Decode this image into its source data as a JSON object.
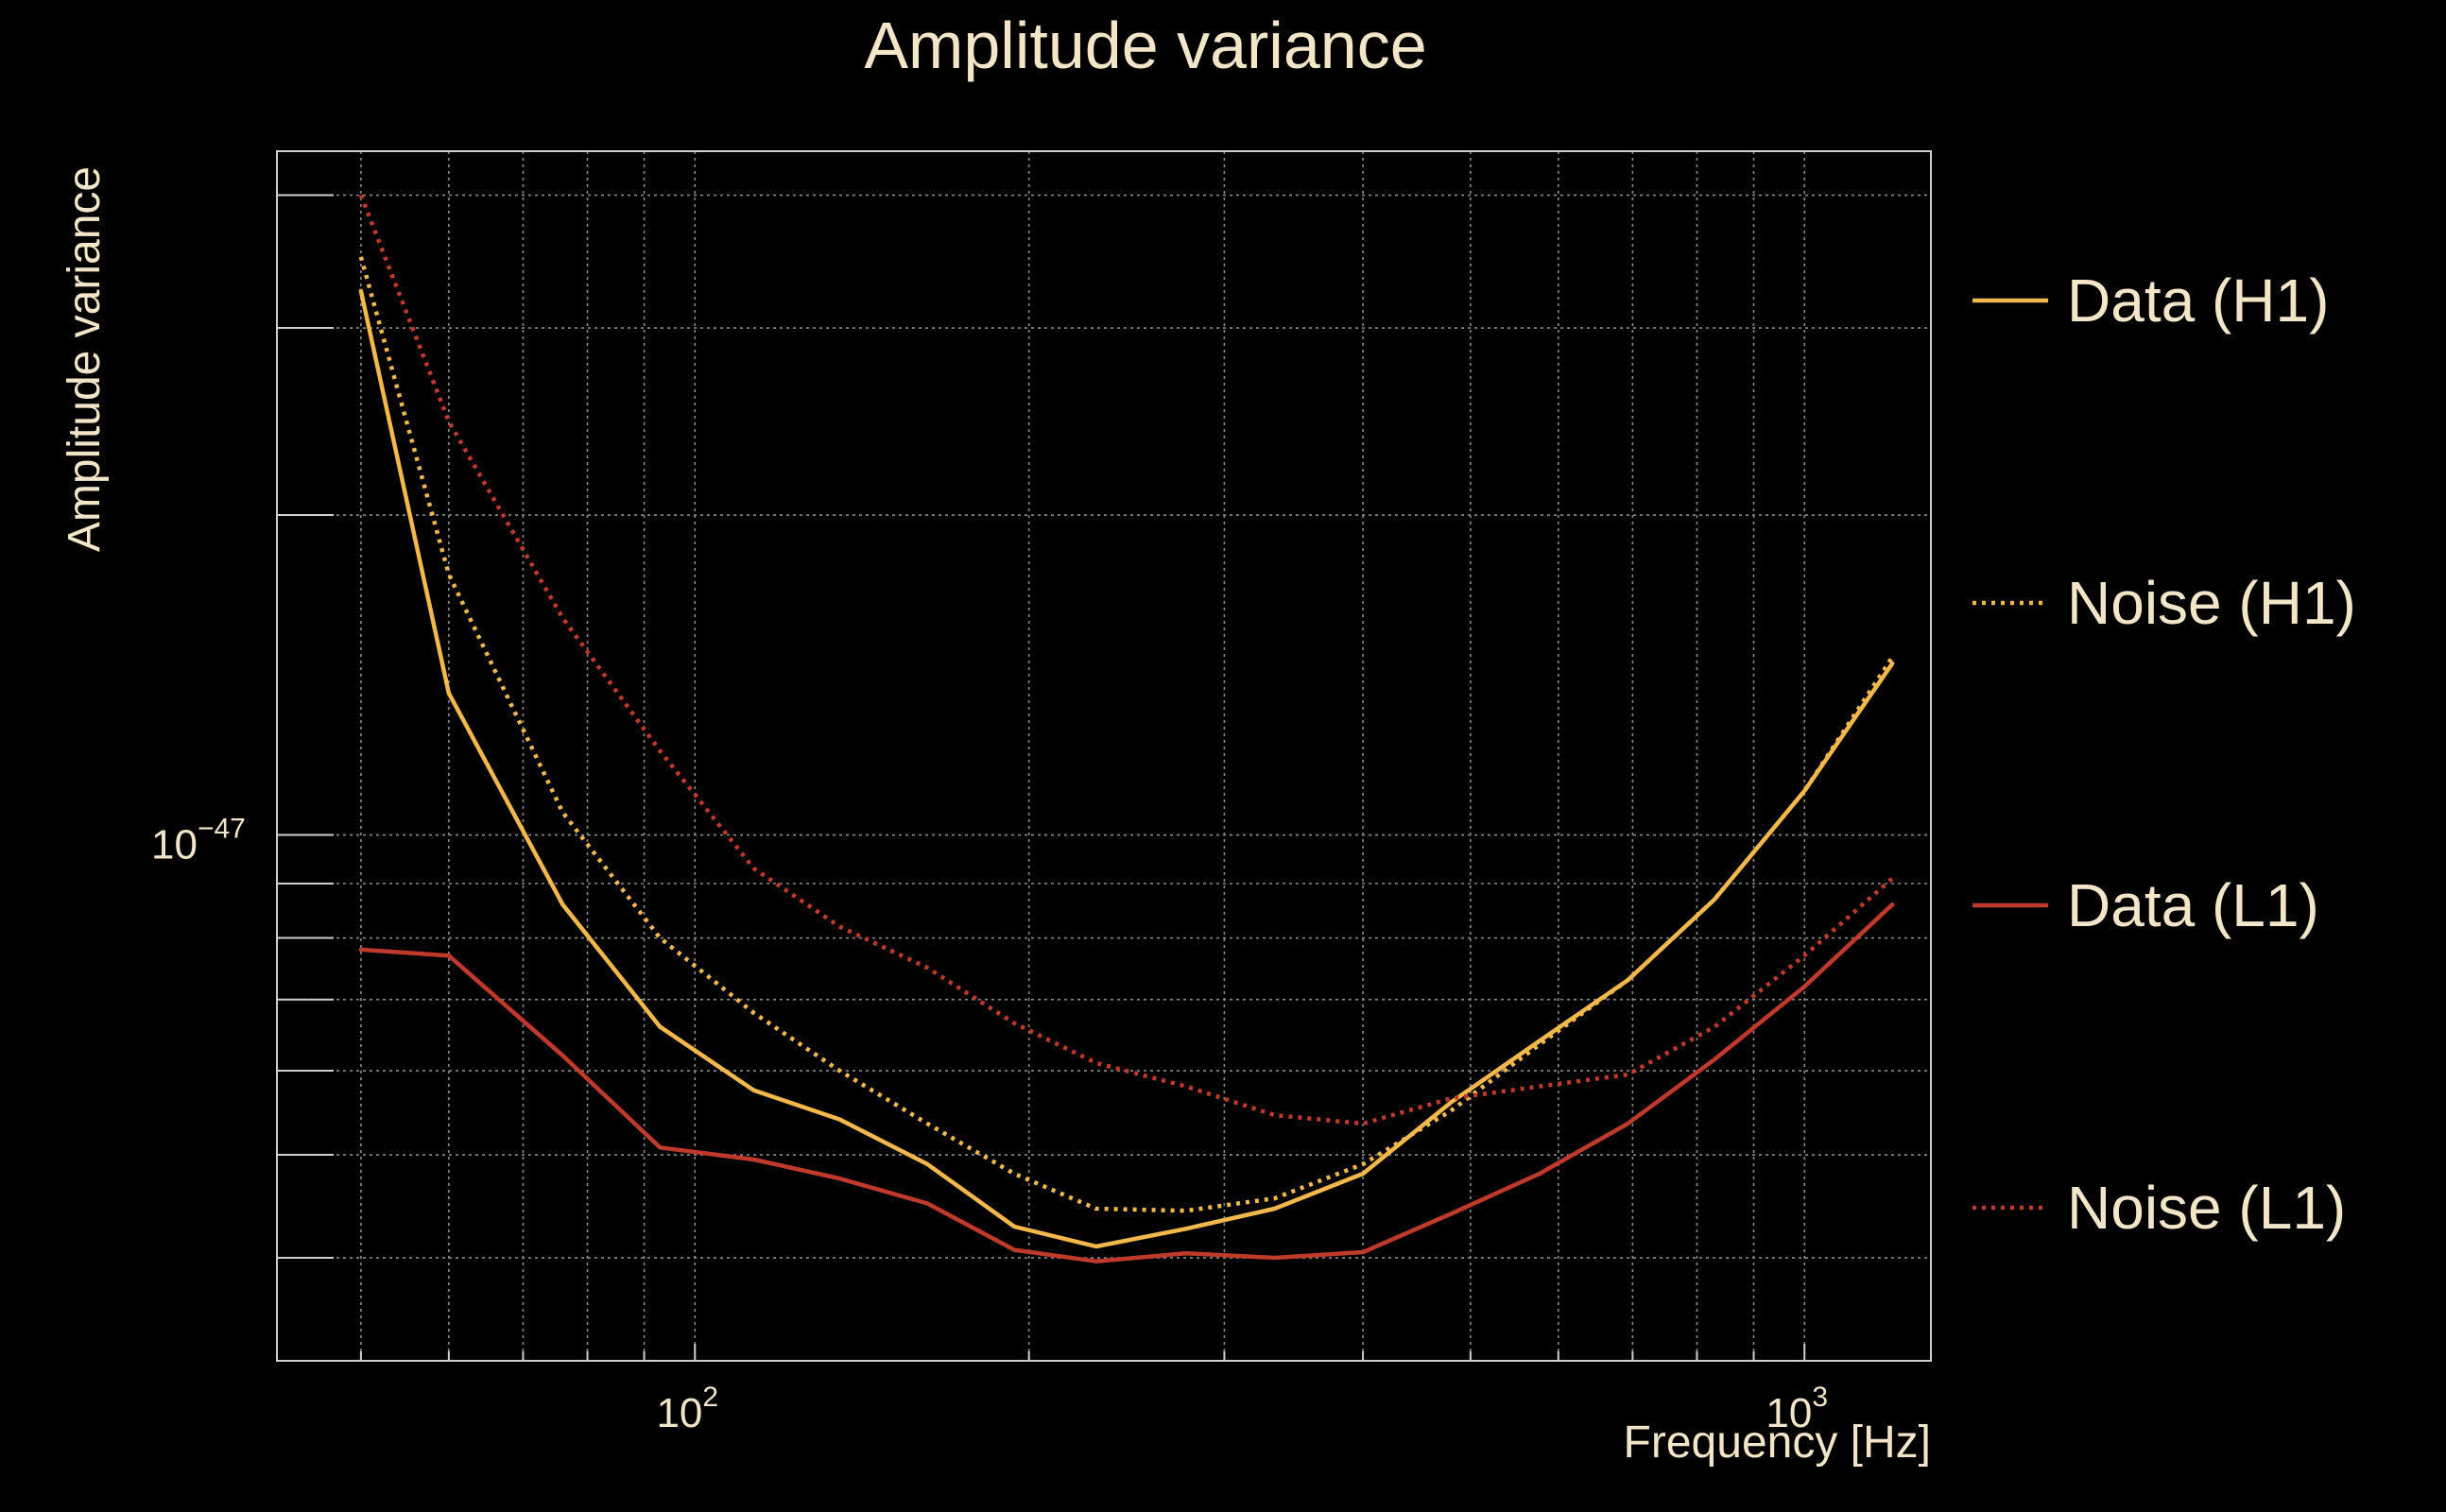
{
  "chart_data": {
    "type": "line",
    "title": "Amplitude variance",
    "xlabel": "Frequency [Hz]",
    "ylabel": "Amplitude variance",
    "xscale": "log",
    "yscale": "log",
    "xlim": [
      42,
      1300
    ],
    "ylim": [
      3.2e-48,
      4.4e-47
    ],
    "grid": true,
    "legend_position": "right",
    "xticks": [
      {
        "value": 100,
        "base": "10",
        "exp": "2"
      },
      {
        "value": 1000,
        "base": "10",
        "exp": "3"
      }
    ],
    "yticks": [
      {
        "value": 1e-47,
        "base": "10",
        "exp": "−47"
      }
    ],
    "series": [
      {
        "name": "Data (H1)",
        "color": "#f2b84b",
        "style": "solid",
        "x": [
          50,
          60,
          76,
          93,
          113,
          135,
          162,
          194,
          230,
          277,
          333,
          400,
          480,
          577,
          693,
          830,
          1000,
          1200
        ],
        "y": [
          3.25e-47,
          1.36e-47,
          8.6e-48,
          6.6e-48,
          5.75e-48,
          5.4e-48,
          4.9e-48,
          4.28e-48,
          4.1e-48,
          4.26e-48,
          4.45e-48,
          4.8e-48,
          5.6e-48,
          6.4e-48,
          7.3e-48,
          8.7e-48,
          1.1e-47,
          1.45e-47
        ]
      },
      {
        "name": "Noise (H1)",
        "color": "#f2b84b",
        "style": "dotted",
        "x": [
          50,
          60,
          76,
          93,
          113,
          135,
          162,
          194,
          230,
          277,
          333,
          400,
          480,
          577,
          693,
          830,
          1000,
          1200
        ],
        "y": [
          3.5e-47,
          1.76e-47,
          1.05e-47,
          8e-48,
          6.8e-48,
          6e-48,
          5.35e-48,
          4.8e-48,
          4.45e-48,
          4.43e-48,
          4.55e-48,
          4.9e-48,
          5.5e-48,
          6.35e-48,
          7.3e-48,
          8.7e-48,
          1.1e-47,
          1.47e-47
        ]
      },
      {
        "name": "Data (L1)",
        "color": "#c03a2b",
        "style": "solid",
        "x": [
          50,
          60,
          76,
          93,
          113,
          135,
          162,
          194,
          230,
          277,
          333,
          400,
          480,
          577,
          693,
          830,
          1000,
          1200
        ],
        "y": [
          7.8e-48,
          7.7e-48,
          6.2e-48,
          5.08e-48,
          4.95e-48,
          4.75e-48,
          4.5e-48,
          4.07e-48,
          3.97e-48,
          4.04e-48,
          4e-48,
          4.05e-48,
          4.4e-48,
          4.8e-48,
          5.35e-48,
          6.15e-48,
          7.2e-48,
          8.6e-48
        ]
      },
      {
        "name": "Noise (L1)",
        "color": "#c03a2b",
        "style": "dotted",
        "x": [
          50,
          60,
          76,
          93,
          113,
          135,
          162,
          194,
          230,
          277,
          333,
          400,
          480,
          577,
          693,
          830,
          1000,
          1200
        ],
        "y": [
          4e-47,
          2.45e-47,
          1.6e-47,
          1.2e-47,
          9.3e-48,
          8.2e-48,
          7.5e-48,
          6.65e-48,
          6.1e-48,
          5.8e-48,
          5.45e-48,
          5.35e-48,
          5.65e-48,
          5.8e-48,
          5.95e-48,
          6.6e-48,
          7.7e-48,
          9.1e-48
        ]
      }
    ]
  }
}
